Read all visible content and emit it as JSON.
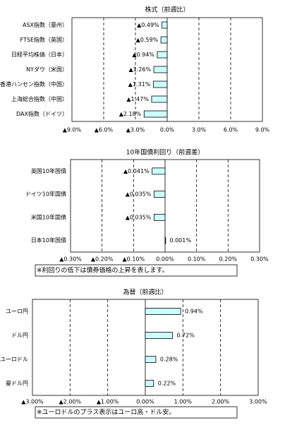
{
  "chart_data": [
    {
      "type": "bar",
      "orientation": "horizontal",
      "title": "株式（前週比）",
      "categories": [
        "ASX指数（豪州）",
        "FTSE指数（英国）",
        "日経平均株価（日本）",
        "NYダウ（米国）",
        "香港ハンセン指数（中国）",
        "上海総合指数（中国）",
        "DAX指数（ドイツ）"
      ],
      "values": [
        -0.49,
        -0.59,
        -0.94,
        -1.26,
        -1.31,
        -1.47,
        -2.18
      ],
      "value_labels": [
        "▲0.49%",
        "▲0.59%",
        "▲0.94%",
        "▲1.26%",
        "▲1.31%",
        "▲1.47%",
        "▲2.18%"
      ],
      "color": "#ccffff",
      "xlim": [
        -9,
        9
      ],
      "xticks": [
        {
          "value": -9,
          "label": "▲9.0%"
        },
        {
          "value": -6,
          "label": "▲6.0%"
        },
        {
          "value": -3,
          "label": "▲3.0%"
        },
        {
          "value": 0,
          "label": "0.0%"
        },
        {
          "value": 3,
          "label": "3.0%"
        },
        {
          "value": 6,
          "label": "6.0%"
        },
        {
          "value": 9,
          "label": "9.0%"
        }
      ],
      "grid": true
    },
    {
      "type": "bar",
      "orientation": "horizontal",
      "title": "10年国債利回り（前週差）",
      "categories": [
        "英国10年国債",
        "ドイツ10年国債",
        "米国10年国債",
        "日本10年国債"
      ],
      "values": [
        -0.041,
        -0.035,
        -0.035,
        0.001
      ],
      "value_labels": [
        "▲0.041%",
        "▲0.035%",
        "▲0.035%",
        "0.001%"
      ],
      "color": "#ccffff",
      "xlim": [
        -0.3,
        0.3
      ],
      "xticks": [
        {
          "value": -0.3,
          "label": "▲0.30%"
        },
        {
          "value": -0.2,
          "label": "▲0.20%"
        },
        {
          "value": -0.1,
          "label": "▲0.10%"
        },
        {
          "value": 0,
          "label": "0.00%"
        },
        {
          "value": 0.1,
          "label": "0.10%"
        },
        {
          "value": 0.2,
          "label": "0.20%"
        },
        {
          "value": 0.3,
          "label": "0.30%"
        }
      ],
      "grid": true,
      "note": "※利回りの低下は債券価格の上昇を表します。"
    },
    {
      "type": "bar",
      "orientation": "horizontal",
      "title": "為替（前週比）",
      "categories": [
        "ユーロ円",
        "ドル円",
        "ユーロドル",
        "豪ドル円"
      ],
      "values": [
        0.94,
        0.72,
        0.28,
        0.22
      ],
      "value_labels": [
        "0.94%",
        "0.72%",
        "0.28%",
        "0.22%"
      ],
      "color": "#ccffff",
      "xlim": [
        -3,
        3
      ],
      "xticks": [
        {
          "value": -3,
          "label": "▲3.00%"
        },
        {
          "value": -2,
          "label": "▲2.00%"
        },
        {
          "value": -1,
          "label": "▲1.00%"
        },
        {
          "value": 0,
          "label": "0.00%"
        },
        {
          "value": 1,
          "label": "1.00%"
        },
        {
          "value": 2,
          "label": "2.00%"
        },
        {
          "value": 3,
          "label": "3.00%"
        }
      ],
      "grid": true,
      "note": "※ユーロドルのプラス表示はユーロ高・ドル安。"
    }
  ]
}
